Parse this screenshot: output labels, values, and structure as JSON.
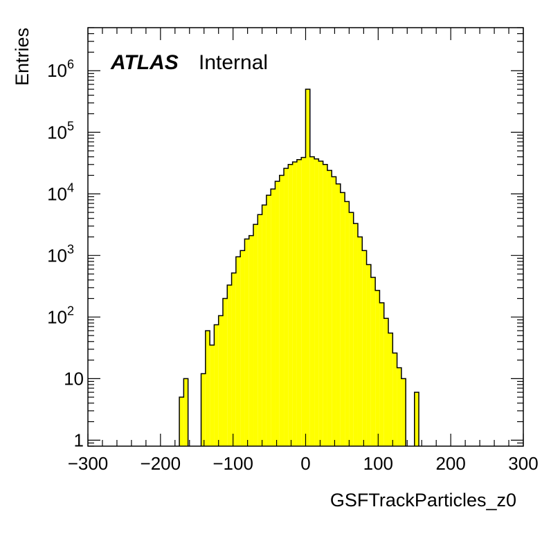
{
  "chart_data": {
    "type": "bar",
    "title": "",
    "xlabel": "GSFTrackParticles_z0",
    "ylabel": "Entries",
    "xlim": [
      -300,
      300
    ],
    "ylim": [
      0.8,
      5000000
    ],
    "log_y": true,
    "grid": false,
    "legend": "none",
    "annotation": {
      "experiment": "ATLAS",
      "status": "Internal"
    },
    "x_ticks": [
      "−300",
      "−200",
      "−100",
      "0",
      "100",
      "200",
      "300"
    ],
    "y_ticks": [
      {
        "value": 1,
        "base": "1",
        "exp": ""
      },
      {
        "value": 10,
        "base": "10",
        "exp": ""
      },
      {
        "value": 100,
        "base": "10",
        "exp": "2"
      },
      {
        "value": 1000,
        "base": "10",
        "exp": "3"
      },
      {
        "value": 10000,
        "base": "10",
        "exp": "4"
      },
      {
        "value": 100000,
        "base": "10",
        "exp": "5"
      },
      {
        "value": 1000000,
        "base": "10",
        "exp": "6"
      }
    ],
    "fill_color": "#ffff00",
    "line_color": "#000000",
    "bin_width": 6,
    "bins_x_low": [
      -174,
      -168,
      -162,
      -156,
      -150,
      -144,
      -138,
      -132,
      -126,
      -120,
      -114,
      -108,
      -102,
      -96,
      -90,
      -84,
      -78,
      -72,
      -66,
      -60,
      -54,
      -48,
      -42,
      -36,
      -30,
      -24,
      -18,
      -12,
      -6,
      0,
      6,
      12,
      18,
      24,
      30,
      36,
      42,
      48,
      54,
      60,
      66,
      72,
      78,
      84,
      90,
      96,
      102,
      108,
      114,
      120,
      126,
      132,
      138,
      144,
      150
    ],
    "values": [
      5,
      10,
      0,
      0,
      0,
      12,
      60,
      35,
      75,
      105,
      200,
      330,
      520,
      950,
      1200,
      1850,
      2100,
      3200,
      4600,
      6600,
      9500,
      12000,
      16000,
      20000,
      26000,
      30000,
      33000,
      36000,
      39000,
      500000,
      40000,
      37000,
      34000,
      30000,
      24000,
      19000,
      14500,
      10500,
      7500,
      5000,
      3300,
      2000,
      1200,
      710,
      440,
      270,
      170,
      95,
      55,
      26,
      15,
      10,
      0,
      0,
      6
    ]
  }
}
